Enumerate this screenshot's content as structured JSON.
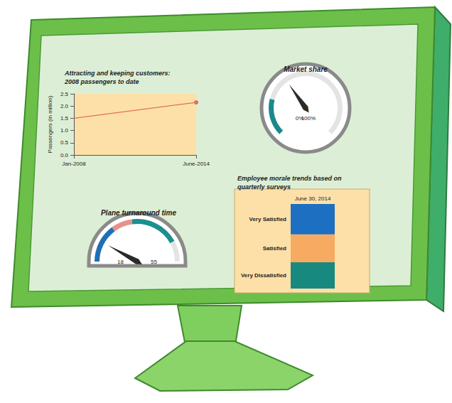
{
  "chart_data": [
    {
      "type": "line",
      "title": "Attracting and keeping customers: 2008 passengers to date",
      "y_label": "Passengers (in million)",
      "categories": [
        "Jan-2008",
        "June-2014"
      ],
      "values": [
        1.5,
        2.15
      ],
      "color": "#e0705a",
      "marker": "circle",
      "ylim": [
        0,
        2.5
      ],
      "yticks": [
        {
          "value": 0,
          "label": "0.0"
        },
        0.5,
        {
          "value": 1,
          "label": "1.0"
        },
        1.5,
        {
          "value": 2,
          "label": "2.0"
        },
        2.5
      ],
      "grid": false
    },
    {
      "type": "gauge",
      "title": "Market share",
      "value": 37,
      "range": [
        0,
        100
      ],
      "ticks": [
        {
          "value": 0,
          "label": "0%"
        },
        {
          "value": 100,
          "label": "100%"
        }
      ],
      "bands": [
        {
          "from": 0,
          "to": 22,
          "color": "#1a8a8a"
        }
      ]
    },
    {
      "type": "gauge",
      "title": "Plane turnaround time",
      "value": 24,
      "range": [
        18,
        55
      ],
      "ticks": [
        18,
        55
      ],
      "bands": [
        {
          "from": 18,
          "to": 29,
          "color": "#1f6fb5"
        },
        {
          "from": 29,
          "to": 35,
          "color": "#e8908a"
        },
        {
          "from": 35,
          "to": 49,
          "color": "#1a9090"
        }
      ]
    },
    {
      "type": "bar",
      "title": "Employee morale trends based on quarterly surveys",
      "categories": [
        "June 30, 2014"
      ],
      "stacked": true,
      "ylim": [
        0,
        100
      ],
      "tick_labels": "x",
      "series": [
        {
          "name": "Very Dissatisfied",
          "color": "#17897e",
          "values": [
            31
          ]
        },
        {
          "name": "Satisfied",
          "color": "#f6aa62",
          "values": [
            33
          ]
        },
        {
          "name": "Very Satisfied",
          "color": "#1d6fc2",
          "values": [
            36
          ]
        }
      ]
    }
  ]
}
